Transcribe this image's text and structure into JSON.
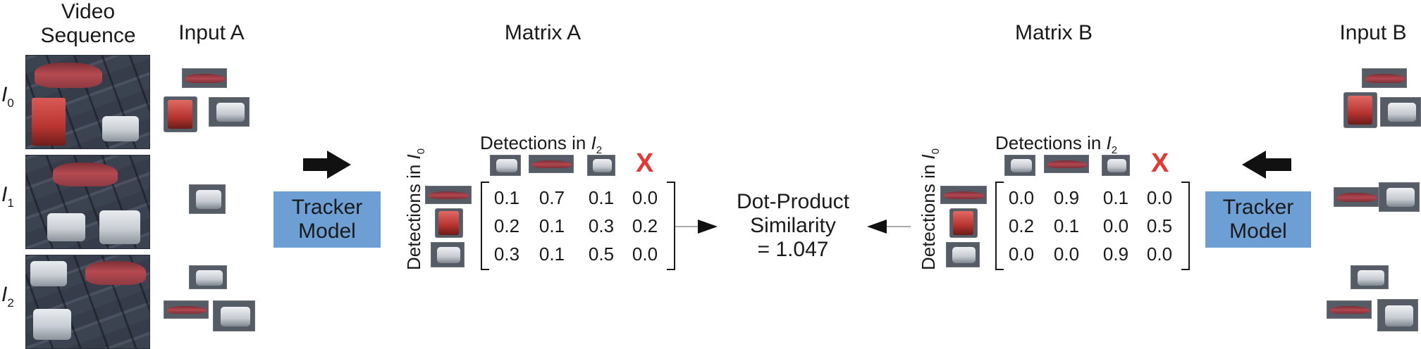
{
  "headers": {
    "video_sequence": "Video\nSequence",
    "input_a": "Input A",
    "matrix_a": "Matrix A",
    "matrix_b": "Matrix B",
    "input_b": "Input B"
  },
  "frames": [
    {
      "label": "I",
      "sub": "0"
    },
    {
      "label": "I",
      "sub": "1"
    },
    {
      "label": "I",
      "sub": "2"
    }
  ],
  "tracker_a": {
    "label": "Tracker\nModel"
  },
  "tracker_b": {
    "label": "Tracker\nModel"
  },
  "matrix_a": {
    "row_axis_label": "Detections in ",
    "row_axis_frame": "I",
    "row_axis_sub": "0",
    "col_axis_label": "Detections in ",
    "col_axis_frame": "I",
    "col_axis_sub": "2",
    "extra_column_mark": "X",
    "rows": [
      [
        "0.1",
        "0.7",
        "0.1",
        "0.0"
      ],
      [
        "0.2",
        "0.1",
        "0.3",
        "0.2"
      ],
      [
        "0.3",
        "0.1",
        "0.5",
        "0.0"
      ]
    ]
  },
  "matrix_b": {
    "row_axis_label": "Detections in ",
    "row_axis_frame": "I",
    "row_axis_sub": "0",
    "col_axis_label": "Detections in ",
    "col_axis_frame": "I",
    "col_axis_sub": "2",
    "extra_column_mark": "X",
    "rows": [
      [
        "0.0",
        "0.9",
        "0.1",
        "0.0"
      ],
      [
        "0.2",
        "0.1",
        "0.0",
        "0.5"
      ],
      [
        "0.0",
        "0.0",
        "0.9",
        "0.0"
      ]
    ]
  },
  "similarity": {
    "line1": "Dot-Product",
    "line2": "Similarity",
    "line3": "= 1.047"
  },
  "colors": {
    "tracker_box": "#6d9fd4",
    "x_mark": "#e53935"
  }
}
